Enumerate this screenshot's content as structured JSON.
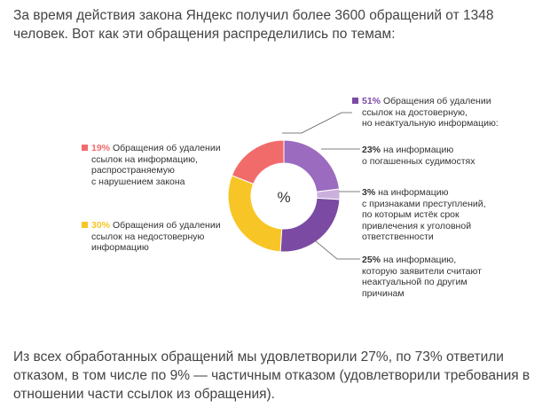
{
  "intro_text": "За время действия закона Яндекс получил более 3600 обращений от 1348 человек. Вот как эти обращения распределились по темам:",
  "outro_text": "Из всех обработанных обращений мы удовлетворили 27%, по 73% ответили отказом, в том числе по 9% — частичным отказом (удовлетворили требования в отношении части ссылок из обращения).",
  "center_label": "%",
  "colors": {
    "red": "#f26b6b",
    "yellow": "#f7c626",
    "purple": "#7b4aa2",
    "purple_light": "#9b6bbf",
    "purple_pale": "#cbb0de",
    "line": "#555555"
  },
  "labels": {
    "red": {
      "pct": "19%",
      "line1": "Обращения об удалении",
      "rest": [
        "ссылок на информацию,",
        "распространяемую",
        "с нарушением закона"
      ]
    },
    "yellow": {
      "pct": "30%",
      "line1": "Обращения об удалении",
      "rest": [
        "ссылок на недостоверную",
        "информацию"
      ]
    },
    "purple": {
      "pct": "51%",
      "line1": "Обращения об удалении",
      "rest": [
        "ссылок на достоверную,",
        "но неактуальную информацию:"
      ]
    },
    "sub23": {
      "pct": "23%",
      "line1": "на информацию",
      "rest": [
        "о погашенных судимостях"
      ]
    },
    "sub3": {
      "pct": "3%",
      "line1": "на информацию",
      "rest": [
        "с признаками преступлений,",
        "по которым истёк срок",
        "привлечения к уголовной",
        "ответственности"
      ]
    },
    "sub25": {
      "pct": "25%",
      "line1": "на информацию,",
      "rest": [
        "которую заявители считают",
        "неактуальной по другим",
        "причинам"
      ]
    }
  },
  "chart_data": {
    "type": "pie",
    "donut": true,
    "center_label": "%",
    "slices": [
      {
        "label": "Обращения об удалении ссылок на достоверную, но неактуальную информацию — о погашенных судимостях",
        "value": 23,
        "color": "#9b6bbf"
      },
      {
        "label": "Обращения об удалении ссылок на достоверную, но неактуальную информацию — с признаками преступлений, по которым истёк срок привлечения к уголовной ответственности",
        "value": 3,
        "color": "#cbb0de"
      },
      {
        "label": "Обращения об удалении ссылок на достоверную, но неактуальную информацию — неактуальной по другим причинам",
        "value": 25,
        "color": "#7b4aa2"
      },
      {
        "label": "Обращения об удалении ссылок на недостоверную информацию",
        "value": 30,
        "color": "#f7c626"
      },
      {
        "label": "Обращения об удалении ссылок на информацию, распространяемую с нарушением закона",
        "value": 19,
        "color": "#f26b6b"
      }
    ]
  }
}
